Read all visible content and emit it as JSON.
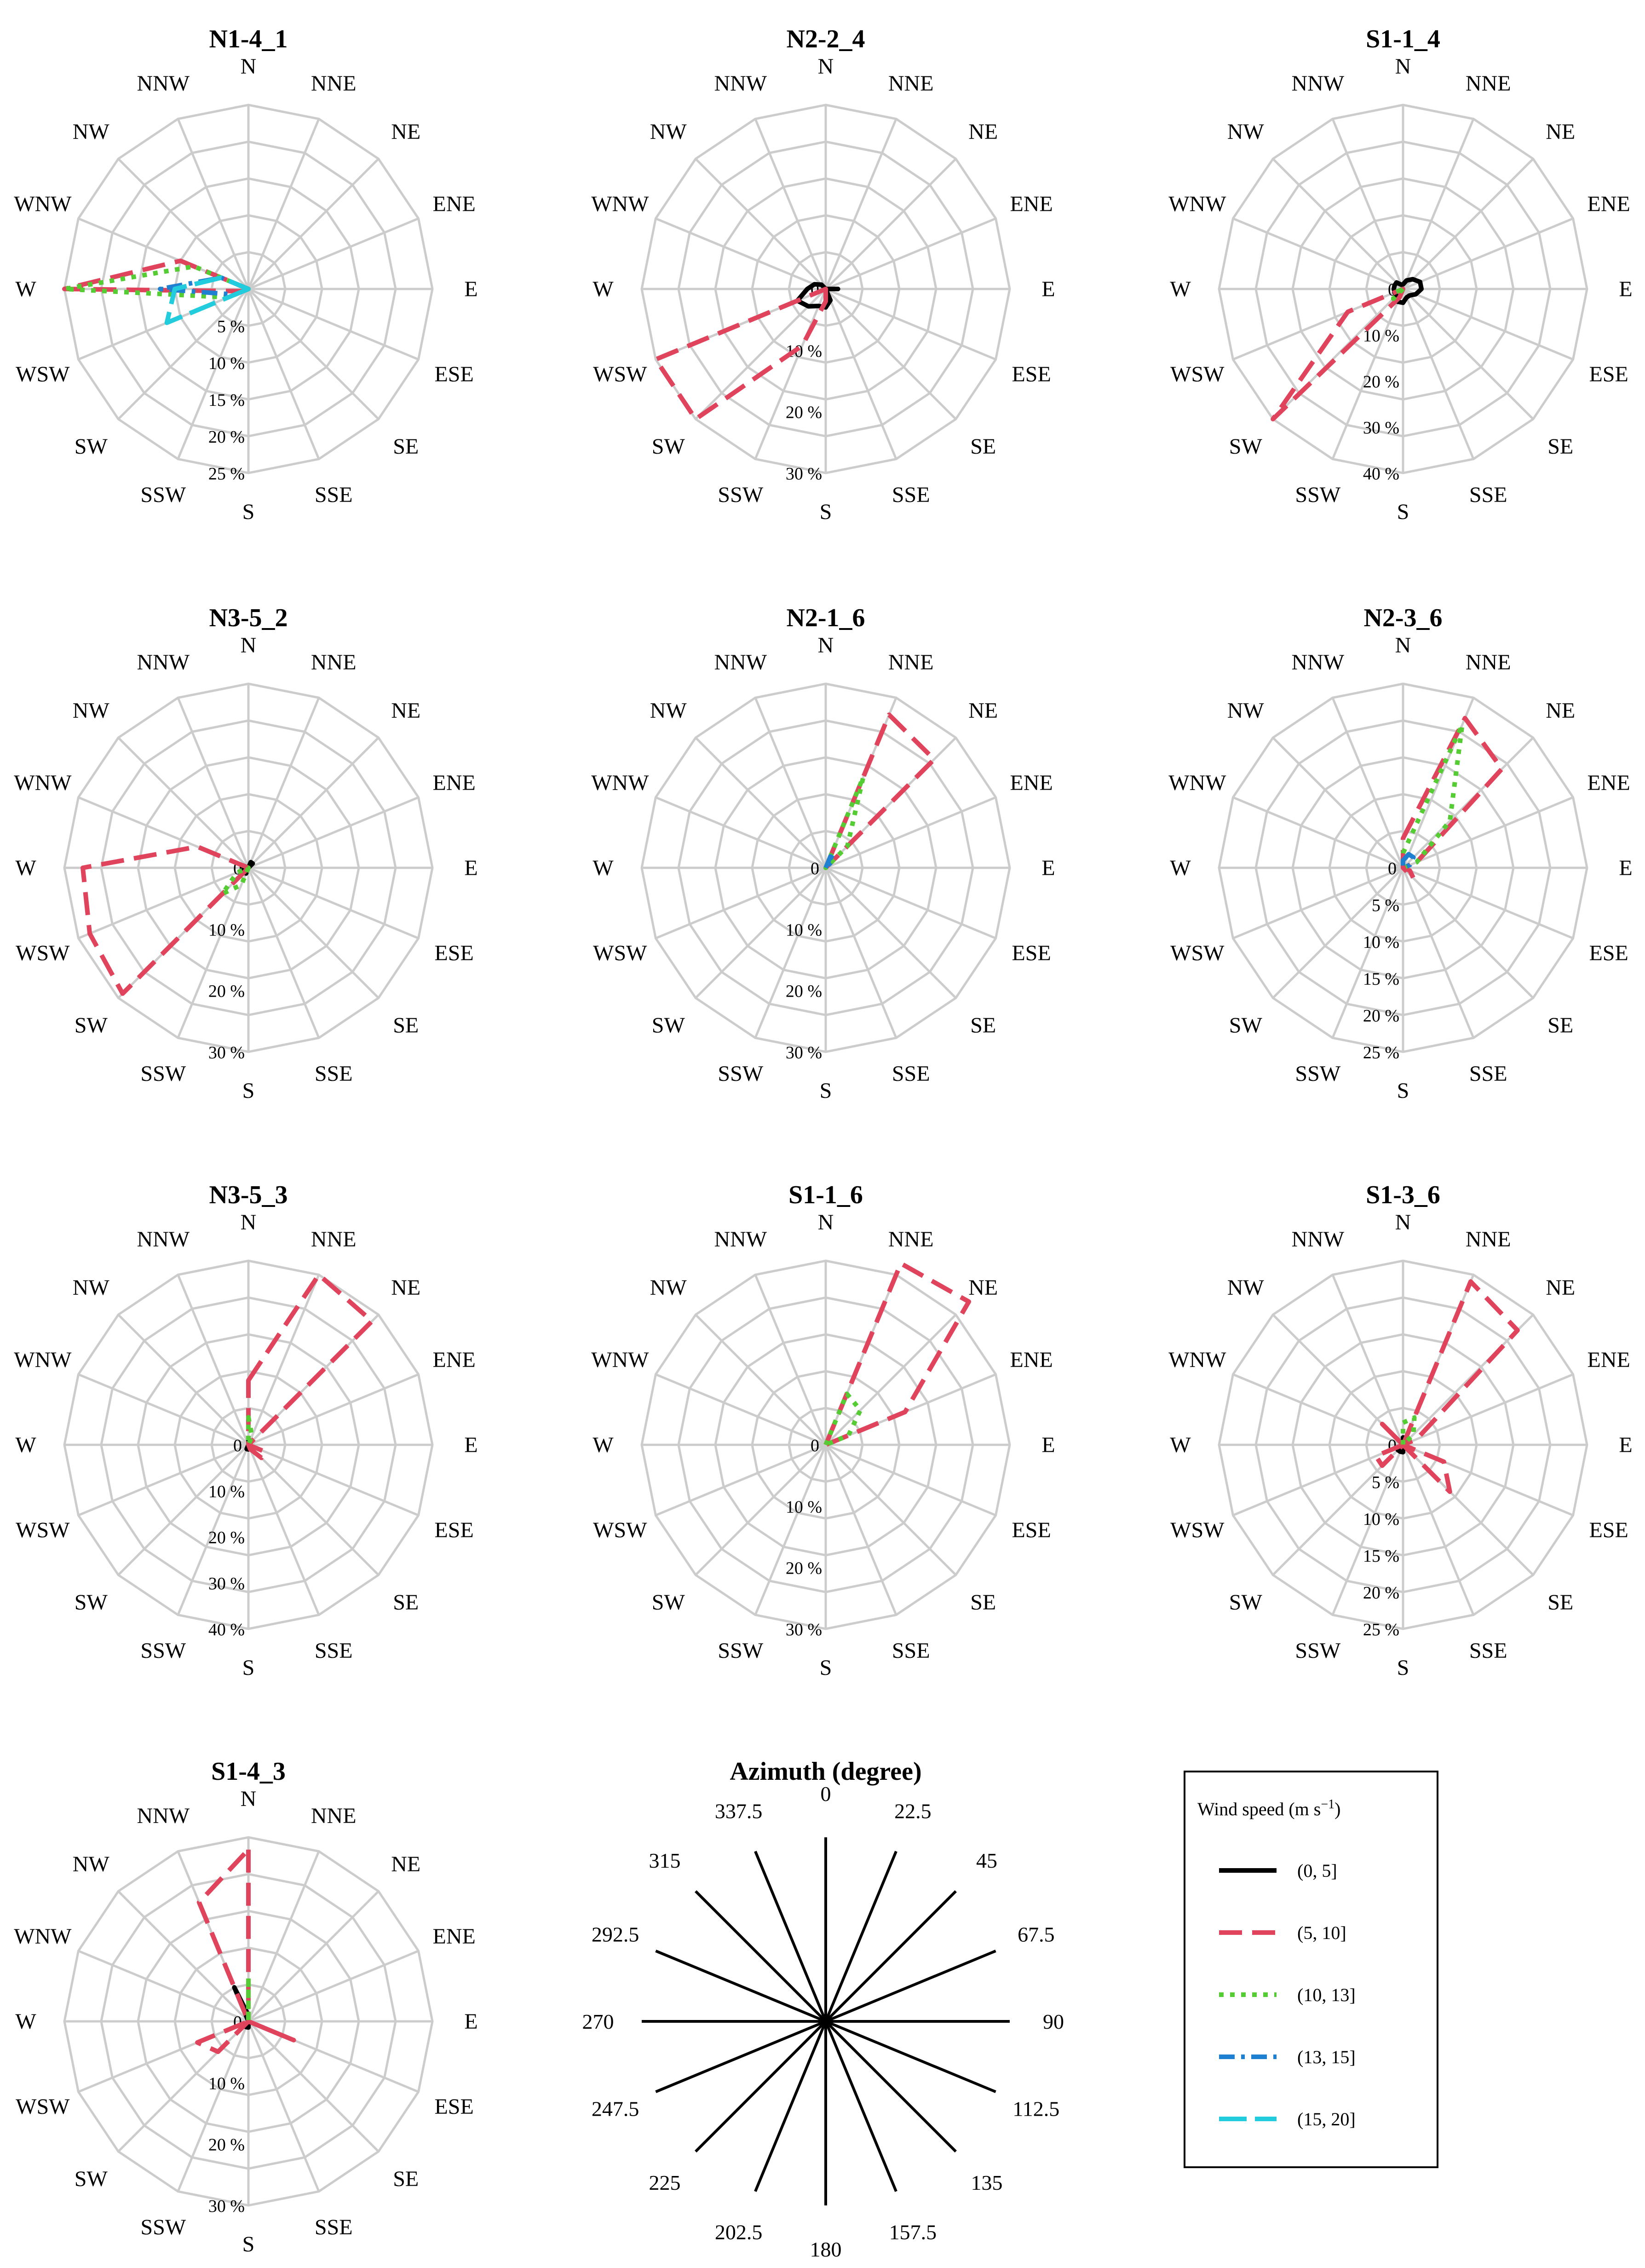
{
  "chart_data": {
    "type": "wind-rose",
    "directions": [
      "N",
      "NNE",
      "NE",
      "ENE",
      "E",
      "ESE",
      "SE",
      "SSE",
      "S",
      "SSW",
      "SW",
      "WSW",
      "W",
      "WNW",
      "NW",
      "NNW"
    ],
    "series_styles": [
      {
        "key": "s0_5",
        "name": "(0, 5]",
        "color": "#000000",
        "dash": "none"
      },
      {
        "key": "s5_10",
        "name": "(5, 10]",
        "color": "#e0435c",
        "dash": "long"
      },
      {
        "key": "s10_13",
        "name": "(10, 13]",
        "color": "#55cc33",
        "dash": "dot"
      },
      {
        "key": "s13_15",
        "name": "(13, 15]",
        "color": "#1f7fd0",
        "dash": "dashdot"
      },
      {
        "key": "s15_20",
        "name": "(15, 20]",
        "color": "#22ccdd",
        "dash": "longdash"
      }
    ],
    "legend": {
      "title": "Wind speed (m s",
      "title_sup": "−1",
      "title_end": ")"
    },
    "roses": [
      {
        "title": "N1-4_1",
        "rmax": 25,
        "ticks": [
          5,
          10,
          15,
          20,
          25
        ],
        "tick_labels": [
          "5 %",
          "10 %",
          "15 %",
          "20 %",
          "25 %"
        ],
        "zero_label": "",
        "series": {
          "s0_5": [
            0,
            0,
            0,
            0,
            0,
            0,
            0,
            0,
            0,
            0,
            0,
            0.3,
            0.5,
            0.3,
            0,
            0
          ],
          "s5_10": [
            0,
            0,
            0,
            0,
            0,
            0,
            0,
            0,
            0,
            0,
            0,
            0.8,
            25,
            10,
            0,
            0
          ],
          "s10_13": [
            0,
            0,
            0,
            0,
            0,
            0,
            0,
            0,
            0,
            0,
            0,
            3,
            25,
            8,
            0,
            0
          ],
          "s13_15": [
            0,
            0,
            0,
            0,
            0,
            0,
            0,
            0,
            0,
            0,
            0,
            2,
            12,
            4,
            0,
            0
          ],
          "s15_20": [
            0,
            0,
            0,
            0,
            0,
            0,
            0,
            0,
            0,
            0,
            0,
            12,
            10,
            4,
            0,
            0
          ]
        }
      },
      {
        "title": "N2-2_4",
        "rmax": 30,
        "ticks": [
          10,
          20,
          30
        ],
        "tick_labels": [
          "10 %",
          "20 %",
          "30 %"
        ],
        "zero_label": "0",
        "series": {
          "s0_5": [
            0,
            0,
            0,
            0,
            2,
            0,
            0,
            2,
            3,
            3,
            4,
            5,
            3,
            2,
            1,
            0
          ],
          "s5_10": [
            0,
            0,
            0,
            0,
            0,
            0,
            0,
            0,
            2,
            10,
            30,
            30,
            0,
            0,
            0,
            0
          ],
          "s10_13": [
            0,
            0,
            0,
            0,
            0,
            0,
            0,
            0,
            0,
            0,
            0,
            0,
            0,
            0,
            0,
            0
          ],
          "s13_15": [
            0,
            0,
            0,
            0,
            0,
            0,
            0,
            0,
            0,
            0,
            0,
            0,
            0,
            0,
            0,
            0
          ],
          "s15_20": [
            0,
            0,
            0,
            0,
            0,
            0,
            0,
            0,
            0,
            0,
            0,
            0,
            0,
            0,
            0,
            0
          ]
        }
      },
      {
        "title": "S1-1_4",
        "rmax": 40,
        "ticks": [
          10,
          20,
          30,
          40
        ],
        "tick_labels": [
          "10 %",
          "20 %",
          "30 %",
          "40 %"
        ],
        "zero_label": "0",
        "series": {
          "s0_5": [
            1,
            2,
            3,
            4,
            4,
            3,
            2,
            2,
            3,
            3,
            2,
            2,
            2,
            2,
            2,
            1
          ],
          "s5_10": [
            0,
            0,
            0,
            0,
            0,
            0,
            0,
            0,
            0,
            2,
            40,
            13,
            0,
            0,
            0,
            0
          ],
          "s10_13": [
            0,
            0,
            0,
            0,
            0,
            0,
            0,
            0,
            0,
            0,
            3,
            2,
            0,
            0,
            0,
            0
          ],
          "s13_15": [
            0,
            0,
            0,
            0,
            0,
            0,
            0,
            0,
            0,
            0,
            0,
            0,
            0,
            0,
            0,
            0
          ],
          "s15_20": [
            0,
            0,
            0,
            0,
            0,
            0,
            0,
            0,
            0,
            0,
            0,
            0,
            0,
            0,
            0,
            0
          ]
        }
      },
      {
        "title": "N3-5_2",
        "rmax": 30,
        "ticks": [
          10,
          20,
          30
        ],
        "tick_labels": [
          "10 %",
          "20 %",
          "30 %"
        ],
        "zero_label": "0",
        "series": {
          "s0_5": [
            0,
            1,
            1,
            0,
            0,
            0,
            0,
            0,
            0,
            1,
            1,
            1,
            1,
            1,
            0,
            0
          ],
          "s5_10": [
            0,
            0,
            0,
            0,
            0,
            0,
            0,
            0,
            0,
            0,
            29,
            28,
            27,
            9,
            0,
            0
          ],
          "s10_13": [
            0,
            0,
            0,
            0,
            0,
            0,
            0,
            0,
            0,
            3,
            6,
            2,
            0,
            0,
            0,
            0
          ],
          "s13_15": [
            0,
            0,
            0,
            0,
            0,
            0,
            0,
            0,
            0,
            0,
            0,
            0,
            0,
            0,
            0,
            0
          ],
          "s15_20": [
            0,
            0,
            0,
            0,
            0,
            0,
            0,
            0,
            0,
            0,
            0,
            0,
            0,
            0,
            0,
            0
          ]
        }
      },
      {
        "title": "N2-1_6",
        "rmax": 30,
        "ticks": [
          10,
          20,
          30
        ],
        "tick_labels": [
          "10 %",
          "20 %",
          "30 %"
        ],
        "zero_label": "0",
        "series": {
          "s0_5": [
            0,
            0,
            0,
            0,
            0,
            0,
            0,
            0,
            0,
            0,
            0,
            0,
            0,
            0,
            0,
            0
          ],
          "s5_10": [
            0,
            27,
            25,
            0,
            0,
            0,
            0,
            0,
            0,
            0,
            0,
            0,
            0,
            0,
            0,
            0
          ],
          "s10_13": [
            0,
            16,
            5,
            0,
            0,
            0,
            0,
            0,
            0,
            0,
            0,
            0,
            0,
            0,
            0,
            0
          ],
          "s13_15": [
            0,
            2,
            2,
            0,
            0,
            0,
            0,
            0,
            0,
            0,
            0,
            0,
            0,
            0,
            0,
            0
          ],
          "s15_20": [
            0,
            0,
            0,
            0,
            0,
            0,
            0,
            0,
            0,
            0,
            0,
            0,
            0,
            0,
            0,
            0
          ]
        }
      },
      {
        "title": "N2-3_6",
        "rmax": 25,
        "ticks": [
          5,
          10,
          15,
          20,
          25
        ],
        "tick_labels": [
          "5 %",
          "10 %",
          "15 %",
          "20 %",
          "25 %"
        ],
        "zero_label": "0",
        "series": {
          "s0_5": [
            0,
            0,
            0,
            0,
            0,
            0,
            0,
            0,
            0,
            0,
            0,
            0,
            0,
            0,
            0,
            0
          ],
          "s5_10": [
            4,
            22,
            19,
            2,
            0,
            1,
            2,
            0,
            0,
            0,
            0,
            0,
            0,
            0,
            0,
            0
          ],
          "s10_13": [
            2,
            21,
            9,
            2,
            0,
            0,
            0,
            0,
            0,
            0,
            0,
            0,
            0,
            0,
            0,
            0
          ],
          "s13_15": [
            1,
            2,
            2,
            1,
            0,
            0,
            0,
            0,
            0,
            0,
            0,
            0,
            0,
            0,
            0,
            0
          ],
          "s15_20": [
            0,
            0,
            0,
            0,
            0,
            0,
            0,
            0,
            0,
            0,
            0,
            0,
            0,
            0,
            0,
            0
          ]
        }
      },
      {
        "title": "N3-5_3",
        "rmax": 40,
        "ticks": [
          10,
          20,
          30,
          40
        ],
        "tick_labels": [
          "10 %",
          "20 %",
          "30 %",
          "40 %"
        ],
        "zero_label": "0",
        "series": {
          "s0_5": [
            1,
            1,
            0,
            0,
            0,
            0,
            0,
            0,
            1,
            1,
            0,
            0,
            0,
            0,
            0,
            0
          ],
          "s5_10": [
            14,
            40,
            38,
            0,
            0,
            4,
            4,
            1,
            0,
            0,
            0,
            0,
            0,
            0,
            0,
            0
          ],
          "s10_13": [
            6,
            2,
            0,
            0,
            0,
            0,
            0,
            0,
            0,
            0,
            0,
            0,
            0,
            0,
            0,
            0
          ],
          "s13_15": [
            0,
            0,
            0,
            0,
            0,
            0,
            0,
            0,
            0,
            0,
            0,
            0,
            0,
            0,
            0,
            0
          ],
          "s15_20": [
            0,
            0,
            0,
            0,
            0,
            0,
            0,
            0,
            0,
            0,
            0,
            0,
            0,
            0,
            0,
            0
          ]
        }
      },
      {
        "title": "S1-1_6",
        "rmax": 30,
        "ticks": [
          10,
          20,
          30
        ],
        "tick_labels": [
          "10 %",
          "20 %",
          "30 %"
        ],
        "zero_label": "0",
        "series": {
          "s0_5": [
            0,
            0,
            0,
            0,
            0,
            0,
            0,
            0,
            0,
            0,
            0,
            0,
            0,
            0,
            0,
            0
          ],
          "s5_10": [
            0,
            32,
            33,
            14,
            0,
            0,
            0,
            0,
            0,
            0,
            0,
            0,
            0,
            0,
            0,
            0
          ],
          "s10_13": [
            0,
            9,
            8,
            4,
            0,
            0,
            0,
            0,
            0,
            0,
            0,
            0,
            0,
            0,
            0,
            0
          ],
          "s13_15": [
            0,
            0,
            0,
            0,
            0,
            0,
            0,
            0,
            0,
            0,
            0,
            0,
            0,
            0,
            0,
            0
          ],
          "s15_20": [
            0,
            0,
            0,
            0,
            0,
            0,
            0,
            0,
            0,
            0,
            0,
            0,
            0,
            0,
            0,
            0
          ]
        }
      },
      {
        "title": "S1-3_6",
        "rmax": 25,
        "ticks": [
          5,
          10,
          15,
          20,
          25
        ],
        "tick_labels": [
          "5 %",
          "10 %",
          "15 %",
          "20 %",
          "25 %"
        ],
        "zero_label": "0",
        "series": {
          "s0_5": [
            1,
            1,
            1,
            0,
            0,
            0,
            0,
            0,
            1,
            1,
            1,
            0,
            0,
            0,
            0,
            0
          ],
          "s5_10": [
            0,
            24,
            22,
            2,
            0,
            6,
            9,
            0,
            0,
            0,
            4,
            4,
            0,
            0,
            4,
            0
          ],
          "s10_13": [
            3,
            4,
            2,
            0,
            0,
            0,
            0,
            0,
            0,
            0,
            0,
            0,
            0,
            0,
            0,
            0
          ],
          "s13_15": [
            0,
            0,
            0,
            0,
            0,
            0,
            0,
            0,
            0,
            0,
            0,
            0,
            0,
            0,
            0,
            0
          ],
          "s15_20": [
            0,
            0,
            0,
            0,
            0,
            0,
            0,
            0,
            0,
            0,
            0,
            0,
            0,
            0,
            0,
            0
          ]
        }
      },
      {
        "title": "S1-4_3",
        "rmax": 30,
        "ticks": [
          10,
          20,
          30
        ],
        "tick_labels": [
          "10 %",
          "20 %",
          "30 %"
        ],
        "zero_label": "0",
        "series": {
          "s0_5": [
            1,
            0,
            0,
            0,
            0,
            0,
            0,
            0,
            1,
            1,
            0,
            0,
            0,
            0,
            0,
            6
          ],
          "s5_10": [
            28,
            0,
            0,
            0,
            0,
            8,
            0,
            0,
            0,
            0,
            7,
            9,
            0,
            0,
            0,
            21
          ],
          "s10_13": [
            7,
            0,
            0,
            0,
            0,
            0,
            0,
            0,
            0,
            0,
            0,
            0,
            0,
            0,
            0,
            0
          ],
          "s13_15": [
            0,
            0,
            0,
            0,
            0,
            0,
            0,
            0,
            0,
            0,
            0,
            0,
            0,
            0,
            0,
            0
          ],
          "s15_20": [
            0,
            0,
            0,
            0,
            0,
            0,
            0,
            0,
            0,
            0,
            0,
            0,
            0,
            0,
            0,
            0
          ]
        }
      }
    ],
    "azimuth_panel": {
      "title": "Azimuth (degree)",
      "labels": [
        "0",
        "22.5",
        "45",
        "67.5",
        "90",
        "112.5",
        "135",
        "157.5",
        "180",
        "202.5",
        "225",
        "247.5",
        "270",
        "292.5",
        "315",
        "337.5"
      ]
    }
  }
}
